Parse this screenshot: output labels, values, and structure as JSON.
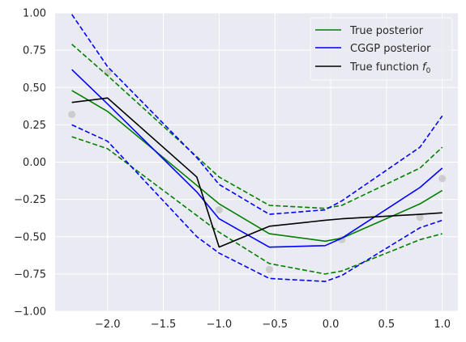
{
  "chart_data": {
    "type": "line",
    "title": "",
    "xlabel": "",
    "ylabel": "",
    "xlim": [
      -2.47,
      1.14
    ],
    "ylim": [
      -1.0,
      1.0
    ],
    "xticks": [
      -2.0,
      -1.5,
      -1.0,
      -0.5,
      0.0,
      0.5,
      1.0
    ],
    "xtick_labels": [
      "−2.0",
      "−1.5",
      "−1.0",
      "−0.5",
      "0.0",
      "0.5",
      "1.0"
    ],
    "yticks": [
      -1.0,
      -0.75,
      -0.5,
      -0.25,
      0.0,
      0.25,
      0.5,
      0.75,
      1.0
    ],
    "ytick_labels": [
      "−1.00",
      "−0.75",
      "−0.50",
      "−0.25",
      "0.00",
      "0.25",
      "0.50",
      "0.75",
      "1.00"
    ],
    "grid": true,
    "legend_position": "top-right",
    "series": [
      {
        "name": "True posterior",
        "style": "solid",
        "color": "#008000",
        "x": [
          -2.32,
          -2.0,
          -1.0,
          -0.55,
          -0.05,
          0.1,
          0.8,
          1.0
        ],
        "y": [
          0.48,
          0.34,
          -0.28,
          -0.48,
          -0.53,
          -0.51,
          -0.28,
          -0.19
        ]
      },
      {
        "style": "dashed",
        "color": "#008000",
        "x": [
          -2.32,
          -2.0,
          -1.0,
          -0.55,
          -0.05,
          0.1,
          0.8,
          1.0
        ],
        "y": [
          0.79,
          0.58,
          -0.1,
          -0.29,
          -0.31,
          -0.29,
          -0.04,
          0.1
        ]
      },
      {
        "style": "dashed",
        "color": "#008000",
        "x": [
          -2.32,
          -2.0,
          -1.0,
          -0.55,
          -0.05,
          0.1,
          0.8,
          1.0
        ],
        "y": [
          0.17,
          0.09,
          -0.47,
          -0.68,
          -0.75,
          -0.73,
          -0.52,
          -0.48
        ]
      },
      {
        "name": "CGGP posterior",
        "style": "solid",
        "color": "#0000ff",
        "x": [
          -2.32,
          -2.0,
          -1.2,
          -1.0,
          -0.55,
          -0.05,
          0.1,
          0.8,
          1.0
        ],
        "y": [
          0.62,
          0.39,
          -0.2,
          -0.38,
          -0.57,
          -0.56,
          -0.51,
          -0.17,
          -0.04
        ]
      },
      {
        "style": "dashed",
        "color": "#0000ff",
        "x": [
          -2.32,
          -2.0,
          -1.2,
          -1.0,
          -0.55,
          -0.05,
          0.1,
          0.8,
          1.0
        ],
        "y": [
          0.99,
          0.64,
          0.03,
          -0.15,
          -0.35,
          -0.32,
          -0.26,
          0.1,
          0.31
        ]
      },
      {
        "style": "dashed",
        "color": "#0000ff",
        "x": [
          -2.32,
          -2.0,
          -1.2,
          -1.0,
          -0.55,
          -0.05,
          0.1,
          0.8,
          1.0
        ],
        "y": [
          0.25,
          0.14,
          -0.5,
          -0.61,
          -0.78,
          -0.8,
          -0.76,
          -0.44,
          -0.39
        ]
      },
      {
        "name": "True function f₀",
        "style": "solid",
        "color": "#000000",
        "x": [
          -2.32,
          -2.0,
          -1.2,
          -1.0,
          -0.55,
          -0.05,
          0.1,
          0.8,
          1.0
        ],
        "y": [
          0.4,
          0.43,
          -0.1,
          -0.57,
          -0.43,
          -0.39,
          -0.38,
          -0.35,
          -0.34
        ]
      }
    ],
    "observations": {
      "color": "#cccccc",
      "x": [
        -2.32,
        -2.0,
        -1.0,
        -0.55,
        0.1,
        0.8,
        1.0
      ],
      "y": [
        0.32,
        0.6,
        -0.32,
        -0.72,
        -0.52,
        -0.37,
        -0.11
      ]
    },
    "legend": [
      {
        "label": "True posterior",
        "color": "#008000"
      },
      {
        "label": "CGGP posterior",
        "color": "#0000ff"
      },
      {
        "label_main": "True function ",
        "label_var": "f",
        "label_sub": "0",
        "color": "#000000"
      }
    ],
    "background_color": "#eaeaf2",
    "grid_color": "#ffffff"
  }
}
